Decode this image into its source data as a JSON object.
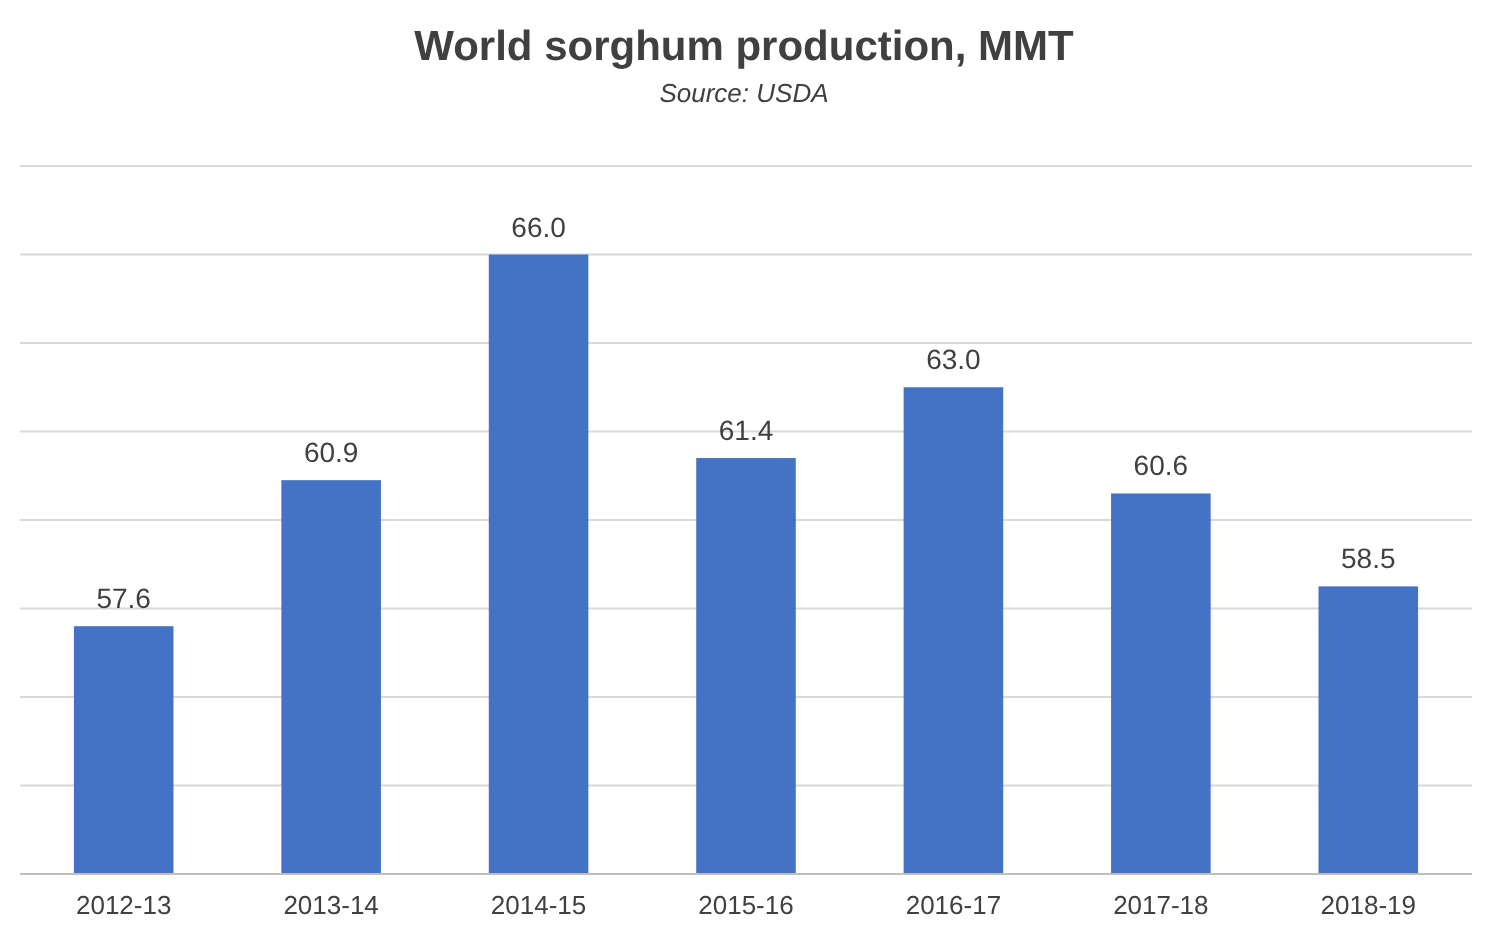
{
  "chart_data": {
    "type": "bar",
    "title": "World sorghum production, MMT",
    "subtitle": "Source: USDA",
    "categories": [
      "2012-13",
      "2013-14",
      "2014-15",
      "2015-16",
      "2016-17",
      "2017-18",
      "2018-19"
    ],
    "values": [
      57.6,
      60.9,
      66.0,
      61.4,
      63.0,
      60.6,
      58.5
    ],
    "value_labels": [
      "57.6",
      "60.9",
      "66.0",
      "61.4",
      "63.0",
      "60.6",
      "58.5"
    ],
    "color": "#4472c4",
    "ylim": [
      52,
      68
    ],
    "yticks": [
      {
        "value": 52,
        "label": null
      },
      {
        "value": 54,
        "label": null
      },
      {
        "value": 56,
        "label": null
      },
      {
        "value": 58,
        "label": null
      },
      {
        "value": 60,
        "label": null
      },
      {
        "value": 62,
        "label": null
      },
      {
        "value": 64,
        "label": null
      },
      {
        "value": 66,
        "label": null
      },
      {
        "value": 68,
        "label": null
      }
    ],
    "grid": "y",
    "tick_labels": "x"
  }
}
